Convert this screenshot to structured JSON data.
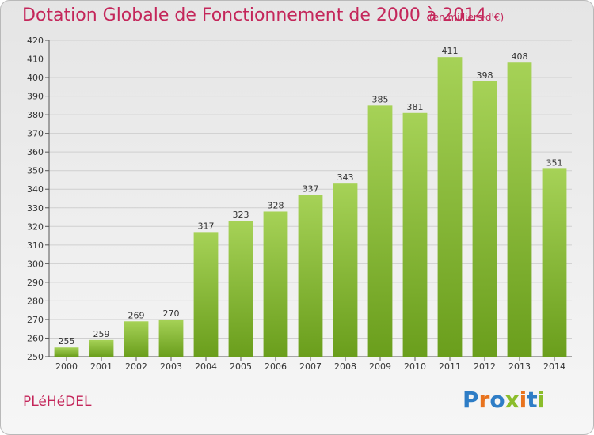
{
  "header": {
    "title": "Dotation Globale de Fonctionnement de 2000 à 2014",
    "subtitle": "(en milliers d'€)"
  },
  "footer": {
    "commune": "PLéHéDEL",
    "logo_text": "Proxiti",
    "logo_colors": [
      "#2e7dc6",
      "#e8731e",
      "#2e7dc6",
      "#8bbd2b",
      "#e8731e",
      "#2e7dc6",
      "#8bbd2b"
    ]
  },
  "colors": {
    "bar_top": "#a6d257",
    "bar_bottom": "#6a9e1c",
    "grid": "#cfcfcf",
    "axis": "#555555",
    "title": "#c4265a"
  },
  "chart_data": {
    "type": "bar",
    "categories": [
      "2000",
      "2001",
      "2002",
      "2003",
      "2004",
      "2005",
      "2006",
      "2007",
      "2008",
      "2009",
      "2010",
      "2011",
      "2012",
      "2013",
      "2014"
    ],
    "values": [
      255,
      259,
      269,
      270,
      317,
      323,
      328,
      337,
      343,
      385,
      381,
      411,
      398,
      408,
      351
    ],
    "ylim": [
      250,
      420
    ],
    "yticks": [
      250,
      260,
      270,
      280,
      290,
      300,
      310,
      320,
      330,
      340,
      350,
      360,
      370,
      380,
      390,
      400,
      410,
      420
    ],
    "grid": true,
    "xlabel": "",
    "ylabel": ""
  }
}
